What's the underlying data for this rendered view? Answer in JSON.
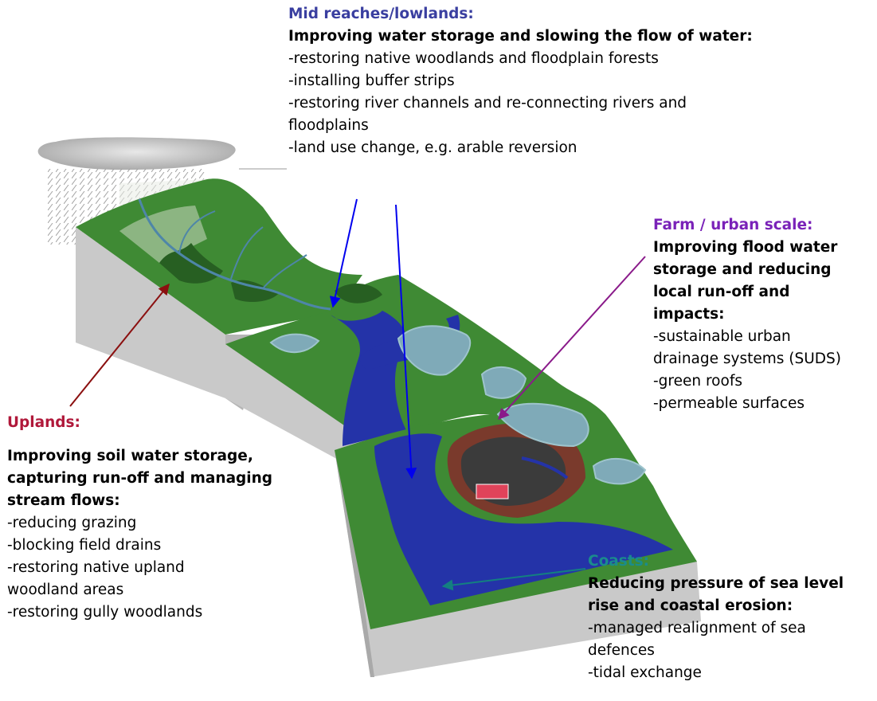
{
  "mid_reaches": {
    "heading": "Mid reaches/lowlands:",
    "subheading": "Improving water storage and slowing the flow of water:",
    "items": [
      "-restoring native woodlands and floodplain forests",
      "-installing buffer strips",
      "-restoring river channels and re-connecting rivers and",
      "floodplains",
      "-land use change, e.g. arable reversion"
    ],
    "arrow_color": "#0000ee"
  },
  "farm_urban": {
    "heading": "Farm / urban scale:",
    "subheading": [
      "Improving flood water",
      "storage and reducing",
      "local run-off and",
      "impacts:"
    ],
    "items": [
      "-sustainable urban",
      "drainage systems (SUDS)",
      "-green roofs",
      "-permeable surfaces"
    ],
    "arrow_color": "#8a1a8a"
  },
  "uplands": {
    "heading": "Uplands:",
    "subheading": [
      "Improving soil water storage,",
      "capturing run-off and managing",
      "stream flows:"
    ],
    "items": [
      "-reducing grazing",
      "-blocking field drains",
      "-restoring native upland",
      "woodland areas",
      "-restoring gully woodlands"
    ],
    "arrow_color": "#8b1010"
  },
  "coasts": {
    "heading": "Coasts:",
    "subheading": [
      "Reducing pressure of sea level",
      "rise and coastal erosion:"
    ],
    "items": [
      "-managed realignment of sea",
      "defences",
      "-tidal exchange"
    ],
    "arrow_color": "#138080"
  },
  "colors": {
    "land": "#3f8a34",
    "land_dark": "#275f22",
    "water": "#2433a8",
    "wetland": "#7faab8",
    "cliff": "#c9c9c9",
    "cliff_shadow": "#a9a9a9",
    "cloud": "#b3b3b3"
  }
}
